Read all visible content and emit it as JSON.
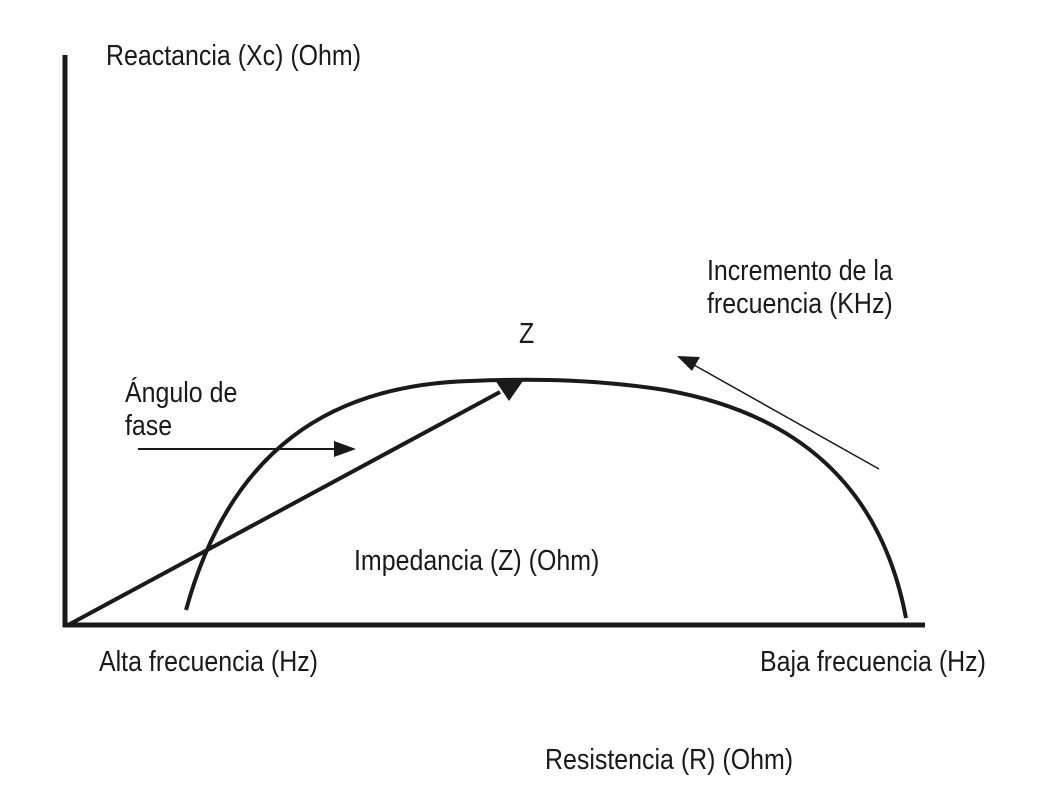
{
  "labels": {
    "y_axis": "Reactancia (Xc) (Ohm)",
    "frequency_increase_line1": "Incremento de la",
    "frequency_increase_line2": "frecuencia (KHz)",
    "z_label": "Z",
    "phase_angle_line1": "Ángulo de",
    "phase_angle_line2": "fase",
    "impedance": "Impedancia (Z) (Ohm)",
    "high_frequency": "Alta frecuencia (Hz)",
    "low_frequency": "Baja frecuencia (Hz)",
    "x_axis": "Resistencia (R) (Ohm)"
  },
  "colors": {
    "ink": "#1a1a1a",
    "background": "#ffffff"
  }
}
